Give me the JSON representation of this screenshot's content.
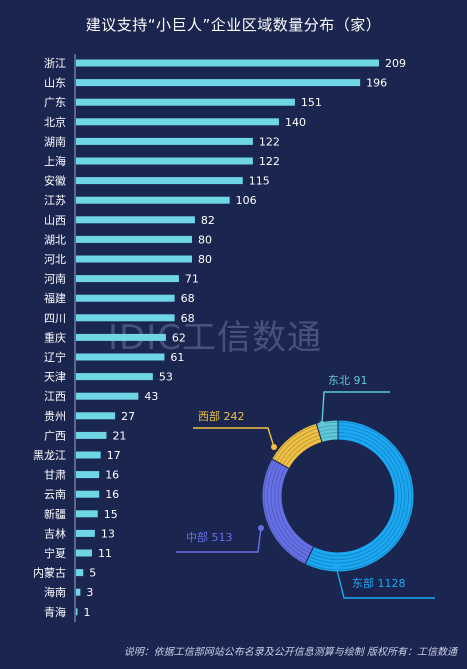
{
  "title": "建议支持“小巨人”企业区域数量分布（家）",
  "watermark": "IDIC工信数通",
  "source_note": "说明：依据工信部网站公布名录及公开信息测算与绘制  版权所有：工信数通",
  "colors": {
    "background": "#1b2650",
    "bar": "#6fd6e6",
    "east": "#1aa8f2",
    "central": "#6670e6",
    "west": "#f0c040",
    "northeast": "#5fc8d8"
  },
  "chart_data": [
    {
      "type": "bar",
      "orientation": "horizontal",
      "categories": [
        "浙江",
        "山东",
        "广东",
        "北京",
        "湖南",
        "上海",
        "安徽",
        "江苏",
        "山西",
        "湖北",
        "河北",
        "河南",
        "福建",
        "四川",
        "重庆",
        "辽宁",
        "天津",
        "江西",
        "贵州",
        "广西",
        "黑龙江",
        "甘肃",
        "云南",
        "新疆",
        "吉林",
        "宁夏",
        "内蒙古",
        "海南",
        "青海"
      ],
      "values": [
        209,
        196,
        151,
        140,
        122,
        122,
        115,
        106,
        82,
        80,
        80,
        71,
        68,
        68,
        62,
        61,
        53,
        43,
        27,
        21,
        17,
        16,
        16,
        15,
        13,
        11,
        5,
        3,
        1
      ],
      "data_labels": true,
      "xlim": [
        0,
        220
      ],
      "grid": false
    },
    {
      "type": "pie",
      "style": "donut",
      "labels": [
        "东部",
        "中部",
        "西部",
        "东北"
      ],
      "values": [
        1128,
        513,
        242,
        91
      ]
    }
  ]
}
